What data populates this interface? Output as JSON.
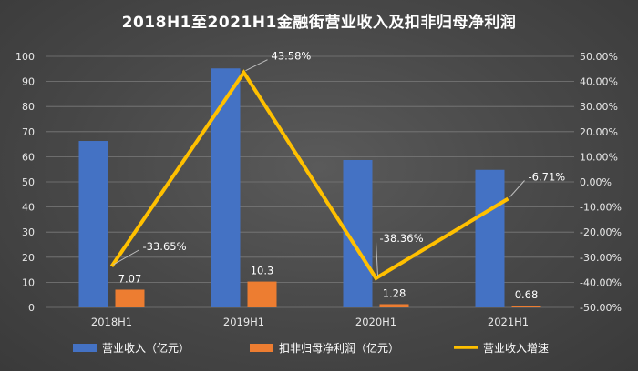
{
  "title": "2018H1至2021H1金融街营业收入及扣非归母净利润",
  "colors": {
    "revenue": "#4472c4",
    "profit": "#ed7d31",
    "growth": "#ffc000"
  },
  "chart_data": {
    "type": "bar",
    "categories": [
      "2018H1",
      "2019H1",
      "2020H1",
      "2021H1"
    ],
    "series": [
      {
        "name": "营业收入（亿元）",
        "type": "bar",
        "axis": "left",
        "values": [
          66.3,
          95.2,
          58.7,
          54.8
        ],
        "labels": [
          "",
          "",
          "",
          ""
        ]
      },
      {
        "name": "扣非归母净利润（亿元）",
        "type": "bar",
        "axis": "left",
        "values": [
          7.07,
          10.3,
          1.28,
          0.68
        ],
        "labels": [
          "7.07",
          "10.3",
          "1.28",
          "0.68"
        ]
      },
      {
        "name": "营业收入增速",
        "type": "line",
        "axis": "right",
        "values": [
          -33.65,
          43.58,
          -38.36,
          -6.71
        ],
        "labels": [
          "-33.65%",
          "43.58%",
          "-38.36%",
          "-6.71%"
        ]
      }
    ],
    "y_left": {
      "ylim": [
        0,
        100
      ],
      "ticks": [
        "0",
        "10",
        "20",
        "30",
        "40",
        "50",
        "60",
        "70",
        "80",
        "90",
        "100"
      ]
    },
    "y_right": {
      "ylim": [
        -50,
        50
      ],
      "ticks": [
        "-50.00%",
        "-40.00%",
        "-30.00%",
        "-20.00%",
        "-10.00%",
        "0.00%",
        "10.00%",
        "20.00%",
        "30.00%",
        "40.00%",
        "50.00%"
      ]
    },
    "grid": true,
    "legend_position": "bottom"
  }
}
